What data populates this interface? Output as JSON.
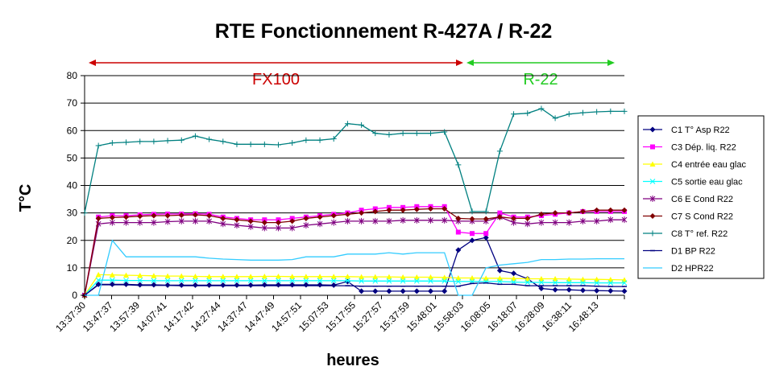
{
  "chart_data": {
    "type": "line",
    "title": "RTE Fonctionnement R-427A / R-22",
    "xlabel": "heures",
    "ylabel": "T°C",
    "ylim": [
      0,
      80
    ],
    "yticks": [
      0,
      10,
      20,
      30,
      40,
      50,
      60,
      70,
      80
    ],
    "grid": "horizontal",
    "legend_position": "right",
    "x_tick_labels": [
      "13:37:30",
      "13:47:37",
      "13:57:39",
      "14:07:41",
      "14:17:42",
      "14:27:44",
      "14:37:47",
      "14:47:49",
      "14:57:51",
      "15:07:53",
      "15:17:55",
      "15:27:57",
      "15:37:59",
      "15:48:01",
      "15:58:03",
      "16:08:05",
      "16:18:07",
      "16:28:09",
      "16:38:11",
      "16:48:13"
    ],
    "regions": [
      {
        "label": "FX100",
        "color": "#cc0000",
        "from_index": 0,
        "to_index": 14
      },
      {
        "label": "R-22",
        "color": "#22cc22",
        "from_index": 14,
        "to_index": 20
      }
    ],
    "series": [
      {
        "name": "C1 T° Asp R22",
        "color": "#000080",
        "marker": "diamond",
        "values": [
          0,
          4,
          4,
          4,
          3.8,
          3.8,
          3.7,
          3.7,
          3.7,
          3.7,
          3.7,
          3.7,
          3.7,
          3.8,
          3.8,
          3.8,
          3.8,
          3.8,
          3.7,
          5,
          1.5,
          1.5,
          1.5,
          1.5,
          1.5,
          1.5,
          1.5,
          16.5,
          20,
          21,
          9,
          8,
          6,
          2.5,
          2,
          2,
          1.8,
          1.7,
          1.6,
          1.5
        ]
      },
      {
        "name": "C3 Dép. liq. R22",
        "color": "#ff00ff",
        "marker": "square",
        "values": [
          0,
          28.5,
          29,
          29,
          29.3,
          29.5,
          29.6,
          29.6,
          29.7,
          29.5,
          28.5,
          28,
          27.5,
          27.5,
          27.5,
          28,
          28.5,
          29,
          29.5,
          30,
          31,
          31.5,
          32,
          32,
          32.3,
          32.3,
          32.3,
          23,
          22.5,
          22.5,
          30,
          28.5,
          28.5,
          29,
          29.5,
          30,
          30.5,
          30.5,
          30.5,
          30.5
        ]
      },
      {
        "name": "C4 entrée eau glac",
        "color": "#ffff00",
        "marker": "triangle",
        "values": [
          0,
          7.5,
          7.4,
          7.3,
          7.2,
          7.1,
          7,
          7,
          6.9,
          6.8,
          6.8,
          6.8,
          6.8,
          6.9,
          6.9,
          6.8,
          6.8,
          6.8,
          6.8,
          6.8,
          6.7,
          6.7,
          6.7,
          6.6,
          6.6,
          6.6,
          6.5,
          6.3,
          6.3,
          6.2,
          6.2,
          6.1,
          6,
          6,
          6,
          5.9,
          5.8,
          5.8,
          5.7,
          5.6
        ]
      },
      {
        "name": "C5 sortie eau glac",
        "color": "#00ffff",
        "marker": "x",
        "values": [
          0,
          5.5,
          5.5,
          5.4,
          5.4,
          5.3,
          5.3,
          5.3,
          5.3,
          5.3,
          5.3,
          5.3,
          5.3,
          5.3,
          5.3,
          5.3,
          5.3,
          5.3,
          5.3,
          5.3,
          5.2,
          5.2,
          5.2,
          5.2,
          5.2,
          5.2,
          5.2,
          5,
          5,
          5,
          5,
          4.8,
          4.7,
          4.7,
          4.6,
          4.6,
          4.6,
          4.5,
          4.5,
          4.5
        ]
      },
      {
        "name": "C6 E Cond R22",
        "color": "#800080",
        "marker": "star",
        "values": [
          0,
          26,
          26.5,
          26.5,
          26.5,
          26.5,
          26.8,
          27,
          27,
          27,
          26,
          25.5,
          25,
          24.5,
          24.5,
          24.5,
          25.5,
          26,
          26.5,
          27,
          27,
          27,
          27,
          27.3,
          27.3,
          27.3,
          27.3,
          27,
          27,
          27,
          28.5,
          26.5,
          26,
          26.5,
          26.5,
          26.5,
          27,
          27,
          27.5,
          27.5
        ]
      },
      {
        "name": "C7 S Cond R22",
        "color": "#800000",
        "marker": "diamond",
        "values": [
          0,
          28,
          28.3,
          28.5,
          28.8,
          29,
          29,
          29.2,
          29.3,
          29,
          28,
          27.5,
          27,
          26.5,
          26.5,
          27,
          28,
          28.5,
          29,
          29.5,
          30,
          30.5,
          31,
          31,
          31.3,
          31.5,
          31.5,
          28,
          27.8,
          27.8,
          28.5,
          28,
          28,
          29.5,
          30,
          30,
          30.5,
          31,
          31,
          31
        ]
      },
      {
        "name": "C8 T° ref. R22",
        "color": "#008080",
        "marker": "plus",
        "values": [
          30,
          54.5,
          55.5,
          55.7,
          56,
          56,
          56.3,
          56.5,
          58,
          56.8,
          56,
          55,
          55,
          55,
          54.8,
          55.5,
          56.5,
          56.5,
          57,
          62.5,
          62,
          59,
          58.5,
          59,
          59,
          59,
          59.5,
          47.5,
          30.5,
          30.5,
          52.5,
          66,
          66.3,
          68,
          64.5,
          66,
          66.5,
          66.8,
          67,
          67
        ]
      },
      {
        "name": "D1 BP R22",
        "color": "#000080",
        "marker": "dash",
        "values": [
          0,
          3.8,
          3.8,
          3.8,
          3.6,
          3.6,
          3.6,
          3.5,
          3.5,
          3.5,
          3.5,
          3.5,
          3.5,
          3.5,
          3.5,
          3.5,
          3.5,
          3.5,
          3.5,
          3.5,
          3.3,
          3.3,
          3.3,
          3.3,
          3.3,
          3.3,
          3.3,
          3.3,
          4.3,
          4.5,
          4,
          4,
          3.5,
          3.5,
          3.5,
          3.5,
          3.5,
          3.3,
          3.2,
          3.2
        ]
      },
      {
        "name": "D2 HPR22",
        "color": "#33ccff",
        "marker": "none",
        "values": [
          0,
          0,
          20,
          14,
          14,
          14,
          14,
          14,
          14,
          13.5,
          13.2,
          13,
          12.8,
          12.8,
          12.8,
          13,
          14,
          14,
          14,
          15,
          15,
          15,
          15.5,
          15,
          15.5,
          15.5,
          15.5,
          0,
          0,
          10,
          11,
          11.5,
          12,
          13,
          13,
          13.2,
          13.2,
          13.3,
          13.3,
          13.3
        ]
      }
    ]
  }
}
